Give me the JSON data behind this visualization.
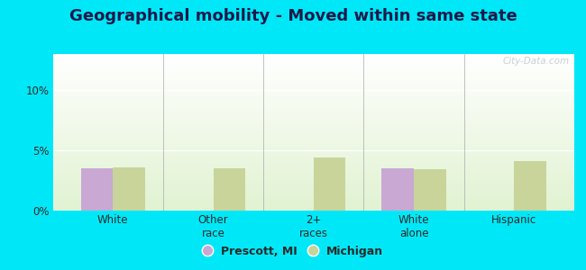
{
  "title": "Geographical mobility - Moved within same state",
  "categories": [
    "White",
    "Other\nrace",
    "2+\nraces",
    "White\nalone",
    "Hispanic"
  ],
  "prescott_values": [
    3.5,
    0,
    0,
    3.5,
    0
  ],
  "michigan_values": [
    3.6,
    3.5,
    4.4,
    3.4,
    4.1
  ],
  "prescott_color": "#c9a8d4",
  "michigan_color": "#c8d49a",
  "outer_background": "#00e8f8",
  "ylim": [
    0,
    13
  ],
  "yticks": [
    0,
    5,
    10
  ],
  "ytick_labels": [
    "0%",
    "5%",
    "10%"
  ],
  "bar_width": 0.32,
  "legend_labels": [
    "Prescott, MI",
    "Michigan"
  ],
  "watermark": "City-Data.com",
  "title_fontsize": 13,
  "tick_fontsize": 8.5,
  "legend_fontsize": 9,
  "title_color": "#1a1a4a"
}
